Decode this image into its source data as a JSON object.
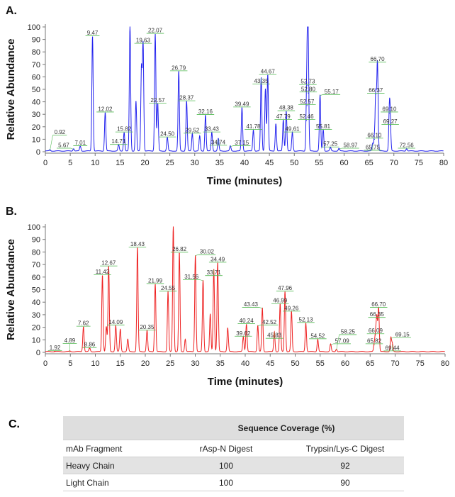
{
  "panels": {
    "a": "A.",
    "b": "B.",
    "c": "C."
  },
  "chart_data": [
    {
      "type": "line",
      "panel": "A.",
      "color": "#2222ee",
      "xlabel": "Time (minutes)",
      "ylabel": "Relative Abundance",
      "xlim": [
        0,
        80
      ],
      "ylim": [
        0,
        100
      ],
      "xticks": [
        "0",
        "5",
        "10",
        "15",
        "20",
        "25",
        "30",
        "35",
        "40",
        "45",
        "50",
        "55",
        "60",
        "65",
        "70",
        "75",
        "80"
      ],
      "yticks": [
        "0",
        "10",
        "20",
        "30",
        "40",
        "50",
        "60",
        "70",
        "80",
        "90",
        "100"
      ],
      "peaks": [
        {
          "rt": 0.92,
          "y": 1,
          "label": "0.92"
        },
        {
          "rt": 5.67,
          "y": 2,
          "label": "5.67"
        },
        {
          "rt": 7.01,
          "y": 4,
          "label": "7.01"
        },
        {
          "rt": 9.47,
          "y": 92,
          "label": "9.47"
        },
        {
          "rt": 12.02,
          "y": 31,
          "label": "12.02"
        },
        {
          "rt": 14.71,
          "y": 5,
          "label": "14.71"
        },
        {
          "rt": 15.82,
          "y": 15,
          "label": "15.82"
        },
        {
          "rt": 17.0,
          "y": 100,
          "label": ""
        },
        {
          "rt": 18.2,
          "y": 40,
          "label": ""
        },
        {
          "rt": 19.3,
          "y": 66,
          "label": ""
        },
        {
          "rt": 19.63,
          "y": 86,
          "label": "19.63"
        },
        {
          "rt": 22.07,
          "y": 94,
          "label": "22.07"
        },
        {
          "rt": 22.57,
          "y": 38,
          "label": "22.57"
        },
        {
          "rt": 24.5,
          "y": 11,
          "label": "24.50"
        },
        {
          "rt": 26.79,
          "y": 64,
          "label": "26.79"
        },
        {
          "rt": 28.37,
          "y": 40,
          "label": "28.37"
        },
        {
          "rt": 29.52,
          "y": 14,
          "label": "29.52"
        },
        {
          "rt": 31.0,
          "y": 12,
          "label": ""
        },
        {
          "rt": 32.16,
          "y": 29,
          "label": "32.16"
        },
        {
          "rt": 33.43,
          "y": 15,
          "label": "33.43"
        },
        {
          "rt": 34.74,
          "y": 10,
          "label": "34.74"
        },
        {
          "rt": 37.15,
          "y": 4,
          "label": "37.15"
        },
        {
          "rt": 39.49,
          "y": 35,
          "label": "39.49"
        },
        {
          "rt": 41.78,
          "y": 17,
          "label": "41.78"
        },
        {
          "rt": 43.35,
          "y": 59,
          "label": "43.35"
        },
        {
          "rt": 44.2,
          "y": 50,
          "label": ""
        },
        {
          "rt": 44.67,
          "y": 61,
          "label": "44.67"
        },
        {
          "rt": 46.3,
          "y": 22,
          "label": ""
        },
        {
          "rt": 47.79,
          "y": 25,
          "label": "47.79"
        },
        {
          "rt": 48.38,
          "y": 32,
          "label": "48.38"
        },
        {
          "rt": 49.61,
          "y": 15,
          "label": "49.61"
        },
        {
          "rt": 52.46,
          "y": 25,
          "label": "52.46"
        },
        {
          "rt": 52.57,
          "y": 37,
          "label": "52.57"
        },
        {
          "rt": 52.73,
          "y": 53,
          "label": "52.73"
        },
        {
          "rt": 52.8,
          "y": 47,
          "label": "52.80"
        },
        {
          "rt": 55.17,
          "y": 45,
          "label": "55.17"
        },
        {
          "rt": 55.81,
          "y": 17,
          "label": "55.81"
        },
        {
          "rt": 57.25,
          "y": 3,
          "label": "57.25"
        },
        {
          "rt": 58.97,
          "y": 2,
          "label": "58.97"
        },
        {
          "rt": 65.75,
          "y": 6,
          "label": "65.75"
        },
        {
          "rt": 66.1,
          "y": 10,
          "label": "66.10"
        },
        {
          "rt": 66.37,
          "y": 46,
          "label": "66.37"
        },
        {
          "rt": 66.7,
          "y": 71,
          "label": "66.70"
        },
        {
          "rt": 69.1,
          "y": 31,
          "label": "69.10"
        },
        {
          "rt": 69.27,
          "y": 21,
          "label": "69.27"
        },
        {
          "rt": 72.56,
          "y": 2,
          "label": "72.56"
        }
      ]
    },
    {
      "type": "line",
      "panel": "B.",
      "color": "#ee2222",
      "xlabel": "Time (minutes)",
      "ylabel": "Relative Abundance",
      "xlim": [
        0,
        80
      ],
      "ylim": [
        0,
        100
      ],
      "xticks": [
        "0",
        "5",
        "10",
        "15",
        "20",
        "25",
        "30",
        "35",
        "40",
        "45",
        "50",
        "55",
        "60",
        "65",
        "70",
        "75",
        "80"
      ],
      "yticks": [
        "0",
        "10",
        "20",
        "30",
        "40",
        "50",
        "60",
        "70",
        "80",
        "90",
        "100"
      ],
      "peaks": [
        {
          "rt": 1.92,
          "y": 0.5,
          "label": "1.92"
        },
        {
          "rt": 4.89,
          "y": 0.5,
          "label": "4.89"
        },
        {
          "rt": 7.62,
          "y": 20,
          "label": "7.62"
        },
        {
          "rt": 8.86,
          "y": 3,
          "label": "8.86"
        },
        {
          "rt": 11.42,
          "y": 61,
          "label": "11.42"
        },
        {
          "rt": 12.2,
          "y": 20,
          "label": ""
        },
        {
          "rt": 12.67,
          "y": 68,
          "label": "12.67"
        },
        {
          "rt": 14.09,
          "y": 21,
          "label": "14.09"
        },
        {
          "rt": 15.0,
          "y": 18,
          "label": ""
        },
        {
          "rt": 16.5,
          "y": 10,
          "label": ""
        },
        {
          "rt": 18.43,
          "y": 83,
          "label": "18.43"
        },
        {
          "rt": 20.35,
          "y": 17,
          "label": "20.35"
        },
        {
          "rt": 21.99,
          "y": 54,
          "label": "21.99"
        },
        {
          "rt": 24.55,
          "y": 48,
          "label": "24.55"
        },
        {
          "rt": 25.6,
          "y": 100,
          "label": ""
        },
        {
          "rt": 26.82,
          "y": 79,
          "label": "26.82"
        },
        {
          "rt": 28.0,
          "y": 10,
          "label": ""
        },
        {
          "rt": 30.02,
          "y": 77,
          "label": "30.02"
        },
        {
          "rt": 31.56,
          "y": 57,
          "label": "31.56"
        },
        {
          "rt": 33.0,
          "y": 30,
          "label": ""
        },
        {
          "rt": 33.71,
          "y": 66,
          "label": "33.71"
        },
        {
          "rt": 34.49,
          "y": 71,
          "label": "34.49"
        },
        {
          "rt": 36.5,
          "y": 19,
          "label": ""
        },
        {
          "rt": 39.62,
          "y": 12,
          "label": "39.62"
        },
        {
          "rt": 40.24,
          "y": 22,
          "label": "40.24"
        },
        {
          "rt": 42.52,
          "y": 21,
          "label": "42.52"
        },
        {
          "rt": 43.43,
          "y": 35,
          "label": "43.43"
        },
        {
          "rt": 45.83,
          "y": 16,
          "label": "45.83"
        },
        {
          "rt": 46.99,
          "y": 38,
          "label": "46.99"
        },
        {
          "rt": 47.96,
          "y": 48,
          "label": "47.96"
        },
        {
          "rt": 49.26,
          "y": 32,
          "label": "49.26"
        },
        {
          "rt": 52.13,
          "y": 23,
          "label": "52.13"
        },
        {
          "rt": 54.52,
          "y": 10,
          "label": "54.52"
        },
        {
          "rt": 57.09,
          "y": 6,
          "label": "57.09"
        },
        {
          "rt": 58.25,
          "y": 2,
          "label": "58.25"
        },
        {
          "rt": 65.82,
          "y": 6,
          "label": "65.82"
        },
        {
          "rt": 66.09,
          "y": 14,
          "label": "66.09"
        },
        {
          "rt": 66.35,
          "y": 27,
          "label": "66.35"
        },
        {
          "rt": 66.7,
          "y": 35,
          "label": "66.70"
        },
        {
          "rt": 69.15,
          "y": 11,
          "label": "69.15"
        },
        {
          "rt": 69.44,
          "y": 6,
          "label": "69.44"
        }
      ]
    },
    {
      "type": "table",
      "panel": "C.",
      "group_header": "Sequence Coverage (%)",
      "columns": [
        "mAb Fragment",
        "rAsp-N Digest",
        "Trypsin/Lys-C Digest"
      ],
      "rows": [
        [
          "Heavy Chain",
          "100",
          "92"
        ],
        [
          "Light Chain",
          "100",
          "90"
        ]
      ]
    }
  ]
}
